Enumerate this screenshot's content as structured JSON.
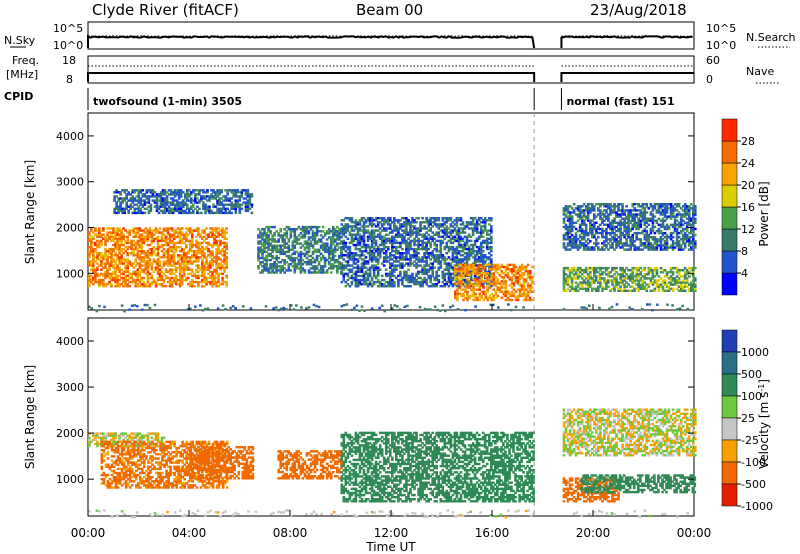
{
  "header": {
    "station": "Clyde River (fitACF)",
    "beam": "Beam 00",
    "date": "23/Aug/2018"
  },
  "panels": {
    "nsky_label": "N.Sky",
    "nsearch_label": "N.Search",
    "freq_label": "Freq.",
    "freq_unit": "[MHz]",
    "nave_label": "Nave",
    "cpid_label": "CPID",
    "nsky_ticks": [
      "10^5",
      "10^0"
    ],
    "nsearch_ticks": [
      "10^5",
      "10^0"
    ],
    "freq_ticks": [
      "18",
      "8"
    ],
    "nave_ticks": [
      "60",
      "0"
    ],
    "cpid_segments": [
      {
        "label": "twofsound (1-min) 3505",
        "start_h": 0.0,
        "end_h": 17.67
      },
      {
        "label": "normal (fast) 151",
        "start_h": 18.75,
        "end_h": 24.0
      }
    ]
  },
  "axes": {
    "x_label": "Time UT",
    "x_ticks": [
      "00:00",
      "04:00",
      "08:00",
      "12:00",
      "16:00",
      "20:00",
      "00:00"
    ],
    "y_label": "Slant Range [km]",
    "y_ticks": [
      "1000",
      "2000",
      "3000",
      "4000"
    ]
  },
  "colorbars": {
    "power": {
      "label": "Power [dB]",
      "ticks": [
        "4",
        "8",
        "12",
        "16",
        "20",
        "24",
        "28"
      ],
      "colors": [
        "#0000ff",
        "#2255cc",
        "#3a7a6a",
        "#4aa04a",
        "#dccc00",
        "#f7a300",
        "#f46d00",
        "#ff2a00"
      ]
    },
    "velocity": {
      "label": "Velocity [m s",
      "label_sup": "-1",
      "label_end": "]",
      "ticks": [
        "1000",
        "500",
        "100",
        "25",
        "-25",
        "-100",
        "-500",
        "-1000"
      ],
      "colors": [
        "#1f3fb5",
        "#2a6e8a",
        "#2f8a55",
        "#6cc83c",
        "#c6c6c6",
        "#f8a000",
        "#f06a00",
        "#e21e00"
      ]
    }
  },
  "chart_data": [
    {
      "type": "heatmap",
      "title": "Power",
      "xlabel": "Time UT",
      "ylabel": "Slant Range [km]",
      "xlim": [
        0,
        24
      ],
      "ylim": [
        200,
        4500
      ],
      "data_gap_hours": [
        17.67,
        18.75
      ],
      "colorbar_range_db": [
        0,
        32
      ],
      "echo_regions": [
        {
          "t_start": 0.0,
          "t_end": 5.5,
          "range_km": [
            700,
            2000
          ],
          "power_db": 24
        },
        {
          "t_start": 1.0,
          "t_end": 6.5,
          "range_km": [
            2300,
            2800
          ],
          "power_db": 8
        },
        {
          "t_start": 6.7,
          "t_end": 10.0,
          "range_km": [
            1000,
            2000
          ],
          "power_db": 10
        },
        {
          "t_start": 10.0,
          "t_end": 16.0,
          "range_km": [
            700,
            2200
          ],
          "power_db": 8
        },
        {
          "t_start": 14.5,
          "t_end": 17.6,
          "range_km": [
            400,
            1200
          ],
          "power_db": 24
        },
        {
          "t_start": 18.8,
          "t_end": 24.0,
          "range_km": [
            600,
            1100
          ],
          "power_db": 14
        },
        {
          "t_start": 18.8,
          "t_end": 24.0,
          "range_km": [
            1500,
            2500
          ],
          "power_db": 8
        }
      ]
    },
    {
      "type": "heatmap",
      "title": "Velocity",
      "xlabel": "Time UT",
      "ylabel": "Slant Range [km]",
      "xlim": [
        0,
        24
      ],
      "ylim": [
        200,
        4500
      ],
      "data_gap_hours": [
        17.67,
        18.75
      ],
      "colorbar_range": [
        -1000,
        1000
      ],
      "echo_regions": [
        {
          "t_start": 0.0,
          "t_end": 3.0,
          "range_km": [
            1700,
            2000
          ],
          "velocity": 0
        },
        {
          "t_start": 0.5,
          "t_end": 5.5,
          "range_km": [
            800,
            1800
          ],
          "velocity": -150
        },
        {
          "t_start": 4.0,
          "t_end": 6.5,
          "range_km": [
            1000,
            1700
          ],
          "velocity": -300
        },
        {
          "t_start": 7.5,
          "t_end": 10.0,
          "range_km": [
            1000,
            1600
          ],
          "velocity": -300
        },
        {
          "t_start": 10.0,
          "t_end": 17.6,
          "range_km": [
            500,
            2000
          ],
          "velocity": 200
        },
        {
          "t_start": 18.8,
          "t_end": 21.0,
          "range_km": [
            500,
            1000
          ],
          "velocity": -200
        },
        {
          "t_start": 19.5,
          "t_end": 24.0,
          "range_km": [
            700,
            1100
          ],
          "velocity": 300
        },
        {
          "t_start": 18.8,
          "t_end": 24.0,
          "range_km": [
            1500,
            2500
          ],
          "velocity": 0
        }
      ]
    }
  ]
}
